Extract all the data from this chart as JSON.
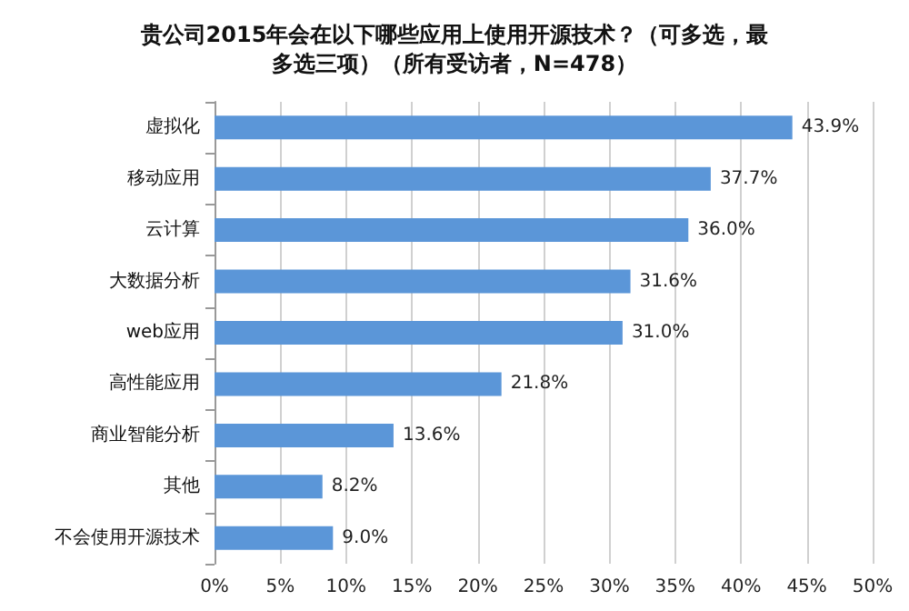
{
  "chart_data": {
    "type": "bar",
    "orientation": "horizontal",
    "title": "贵公司2015年会在以下哪些应用上使用开源技术？（可多选，最多选三项）（所有受访者，N=478）",
    "categories": [
      "虚拟化",
      "移动应用",
      "云计算",
      "大数据分析",
      "web应用",
      "高性能应用",
      "商业智能分析",
      "其他",
      "不会使用开源技术"
    ],
    "values": [
      43.9,
      37.7,
      36.0,
      31.6,
      31.0,
      21.8,
      13.6,
      8.2,
      9.0
    ],
    "value_labels": [
      "43.9%",
      "37.7%",
      "36.0%",
      "31.6%",
      "31.0%",
      "21.8%",
      "13.6%",
      "8.2%",
      "9.0%"
    ],
    "color": "#5b96d8",
    "xlim": [
      0,
      50
    ],
    "xticks": [
      {
        "value": 0,
        "label": "0%"
      },
      {
        "value": 5,
        "label": "5%"
      },
      {
        "value": 10,
        "label": "10%"
      },
      {
        "value": 15,
        "label": "15%"
      },
      {
        "value": 20,
        "label": "20%"
      },
      {
        "value": 25,
        "label": "25%"
      },
      {
        "value": 30,
        "label": "30%"
      },
      {
        "value": 35,
        "label": "35%"
      },
      {
        "value": 40,
        "label": "40%"
      },
      {
        "value": 45,
        "label": "45%"
      },
      {
        "value": 50,
        "label": "50%"
      }
    ],
    "grid": "x"
  }
}
